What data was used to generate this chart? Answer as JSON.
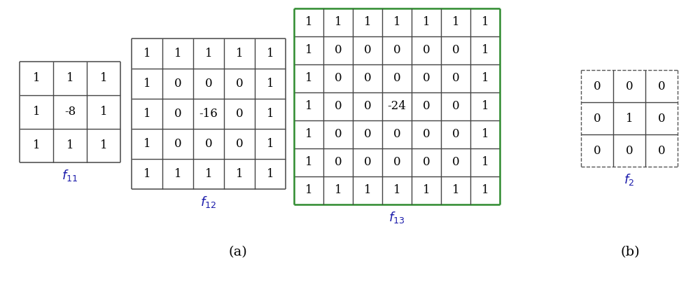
{
  "f11": {
    "matrix": [
      [
        1,
        1,
        1
      ],
      [
        1,
        -8,
        1
      ],
      [
        1,
        1,
        1
      ]
    ],
    "label": "$f_{11}$",
    "border_color": "#555555",
    "border_lw": 1.2,
    "cell_lw": 1.0
  },
  "f12": {
    "matrix": [
      [
        1,
        1,
        1,
        1,
        1
      ],
      [
        1,
        0,
        0,
        0,
        1
      ],
      [
        1,
        0,
        -16,
        0,
        1
      ],
      [
        1,
        0,
        0,
        0,
        1
      ],
      [
        1,
        1,
        1,
        1,
        1
      ]
    ],
    "label": "$f_{12}$",
    "border_color": "#555555",
    "border_lw": 1.2,
    "cell_lw": 1.0
  },
  "f13": {
    "matrix": [
      [
        1,
        1,
        1,
        1,
        1,
        1,
        1
      ],
      [
        1,
        0,
        0,
        0,
        0,
        0,
        1
      ],
      [
        1,
        0,
        0,
        0,
        0,
        0,
        1
      ],
      [
        1,
        0,
        0,
        -24,
        0,
        0,
        1
      ],
      [
        1,
        0,
        0,
        0,
        0,
        0,
        1
      ],
      [
        1,
        0,
        0,
        0,
        0,
        0,
        1
      ],
      [
        1,
        1,
        1,
        1,
        1,
        1,
        1
      ]
    ],
    "label": "$f_{13}$",
    "border_color": "#2e8b2e",
    "border_lw": 1.8,
    "cell_lw": 1.0
  },
  "f2": {
    "matrix": [
      [
        0,
        0,
        0
      ],
      [
        0,
        1,
        0
      ],
      [
        0,
        0,
        0
      ]
    ],
    "label": "$f_2$",
    "border_color": "#555555",
    "border_lw": 1.0,
    "cell_lw": 1.0,
    "dashed": true
  },
  "label_color": "#1a1aaa",
  "label_fontsize": 13,
  "text_fontsize": 12,
  "bg_color": "#ffffff",
  "annotation_a": "(a)",
  "annotation_b": "(b)",
  "annotation_fontsize": 14,
  "fig_width": 10.0,
  "fig_height": 4.07,
  "dpi": 100
}
